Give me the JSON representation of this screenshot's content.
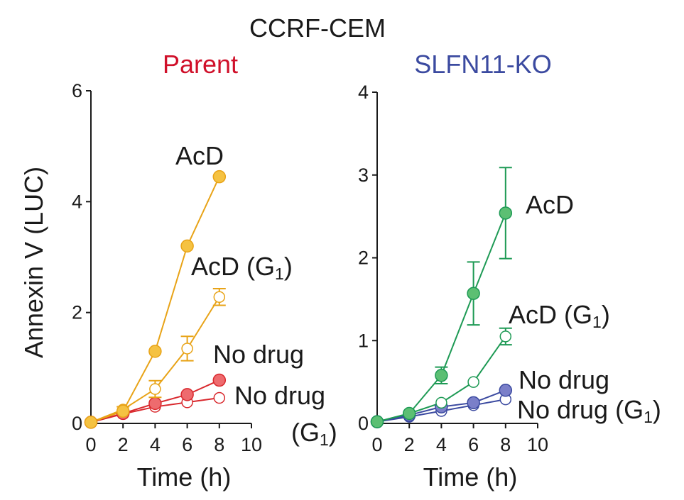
{
  "figure": {
    "title": "CCRF-CEM",
    "ylabel": "Annexin V (LUC)",
    "colors": {
      "parent_title": "#d0102a",
      "ko_title": "#3b4aa0",
      "axis": "#1a1a1a"
    }
  },
  "chart_data": [
    {
      "type": "line",
      "title": "Parent",
      "xlabel": "Time (h)",
      "ylabel": "Annexin V (LUC)",
      "xlim": [
        0,
        10
      ],
      "ylim": [
        0,
        6
      ],
      "xticks": [
        0,
        2,
        4,
        6,
        8,
        10
      ],
      "yticks": [
        0,
        2,
        4,
        6
      ],
      "x": [
        0,
        2,
        4,
        6,
        8
      ],
      "series": [
        {
          "name": "AcD",
          "label": "AcD",
          "filled": true,
          "color": "#f5c242",
          "edge": "#e8a317",
          "line": "#e8a317",
          "values": [
            0.02,
            0.22,
            1.3,
            3.2,
            4.45
          ],
          "errors": [
            0,
            0,
            0,
            0,
            0
          ]
        },
        {
          "name": "AcD (G1)",
          "label": "AcD (G",
          "sub": "1",
          "label_end": ")",
          "filled": false,
          "color": "#ffffff",
          "edge": "#e8a317",
          "line": "#e8a317",
          "values": [
            0.02,
            0.25,
            0.62,
            1.35,
            2.28
          ],
          "errors": [
            0,
            0.05,
            0.15,
            0.22,
            0.15
          ]
        },
        {
          "name": "No drug",
          "label": "No drug",
          "filled": true,
          "color": "#ee6b6e",
          "edge": "#d9282d",
          "line": "#d9282d",
          "values": [
            0.02,
            0.18,
            0.36,
            0.52,
            0.78
          ],
          "errors": [
            0,
            0,
            0,
            0,
            0
          ]
        },
        {
          "name": "No drug (G1)",
          "label": "No drug",
          "label2": "(G",
          "sub": "1",
          "label_end": ")",
          "filled": false,
          "color": "#ffffff",
          "edge": "#d9282d",
          "line": "#d9282d",
          "values": [
            0.02,
            0.17,
            0.3,
            0.38,
            0.46
          ],
          "errors": [
            0,
            0,
            0,
            0,
            0
          ]
        }
      ]
    },
    {
      "type": "line",
      "title": "SLFN11-KO",
      "xlabel": "Time (h)",
      "ylabel": "Annexin V (LUC)",
      "xlim": [
        0,
        10
      ],
      "ylim": [
        0,
        4
      ],
      "xticks": [
        0,
        2,
        4,
        6,
        8,
        10
      ],
      "yticks": [
        0,
        1,
        2,
        3,
        4
      ],
      "x": [
        0,
        2,
        4,
        6,
        8
      ],
      "series": [
        {
          "name": "AcD",
          "label": "AcD",
          "filled": true,
          "color": "#5cbf73",
          "edge": "#1e9a55",
          "line": "#1e9a55",
          "values": [
            0.02,
            0.12,
            0.58,
            1.57,
            2.54
          ],
          "errors": [
            0,
            0,
            0.1,
            0.38,
            0.55
          ]
        },
        {
          "name": "AcD (G1)",
          "label": "AcD (G",
          "sub": "1",
          "label_end": ")",
          "filled": false,
          "color": "#ffffff",
          "edge": "#1e9a55",
          "line": "#1e9a55",
          "values": [
            0.02,
            0.12,
            0.25,
            0.5,
            1.05
          ],
          "errors": [
            0,
            0,
            0,
            0,
            0.1
          ]
        },
        {
          "name": "No drug",
          "label": "No drug",
          "filled": true,
          "color": "#7a7fc9",
          "edge": "#3b4aa0",
          "line": "#3b4aa0",
          "values": [
            0.02,
            0.1,
            0.2,
            0.25,
            0.4
          ],
          "errors": [
            0,
            0,
            0,
            0,
            0
          ]
        },
        {
          "name": "No drug (G1)",
          "label": "No drug (G",
          "sub": "1",
          "label_end": ")",
          "filled": false,
          "color": "#ffffff",
          "edge": "#3b4aa0",
          "line": "#3b4aa0",
          "values": [
            0.02,
            0.08,
            0.15,
            0.22,
            0.29
          ],
          "errors": [
            0,
            0,
            0,
            0,
            0
          ]
        }
      ]
    }
  ]
}
